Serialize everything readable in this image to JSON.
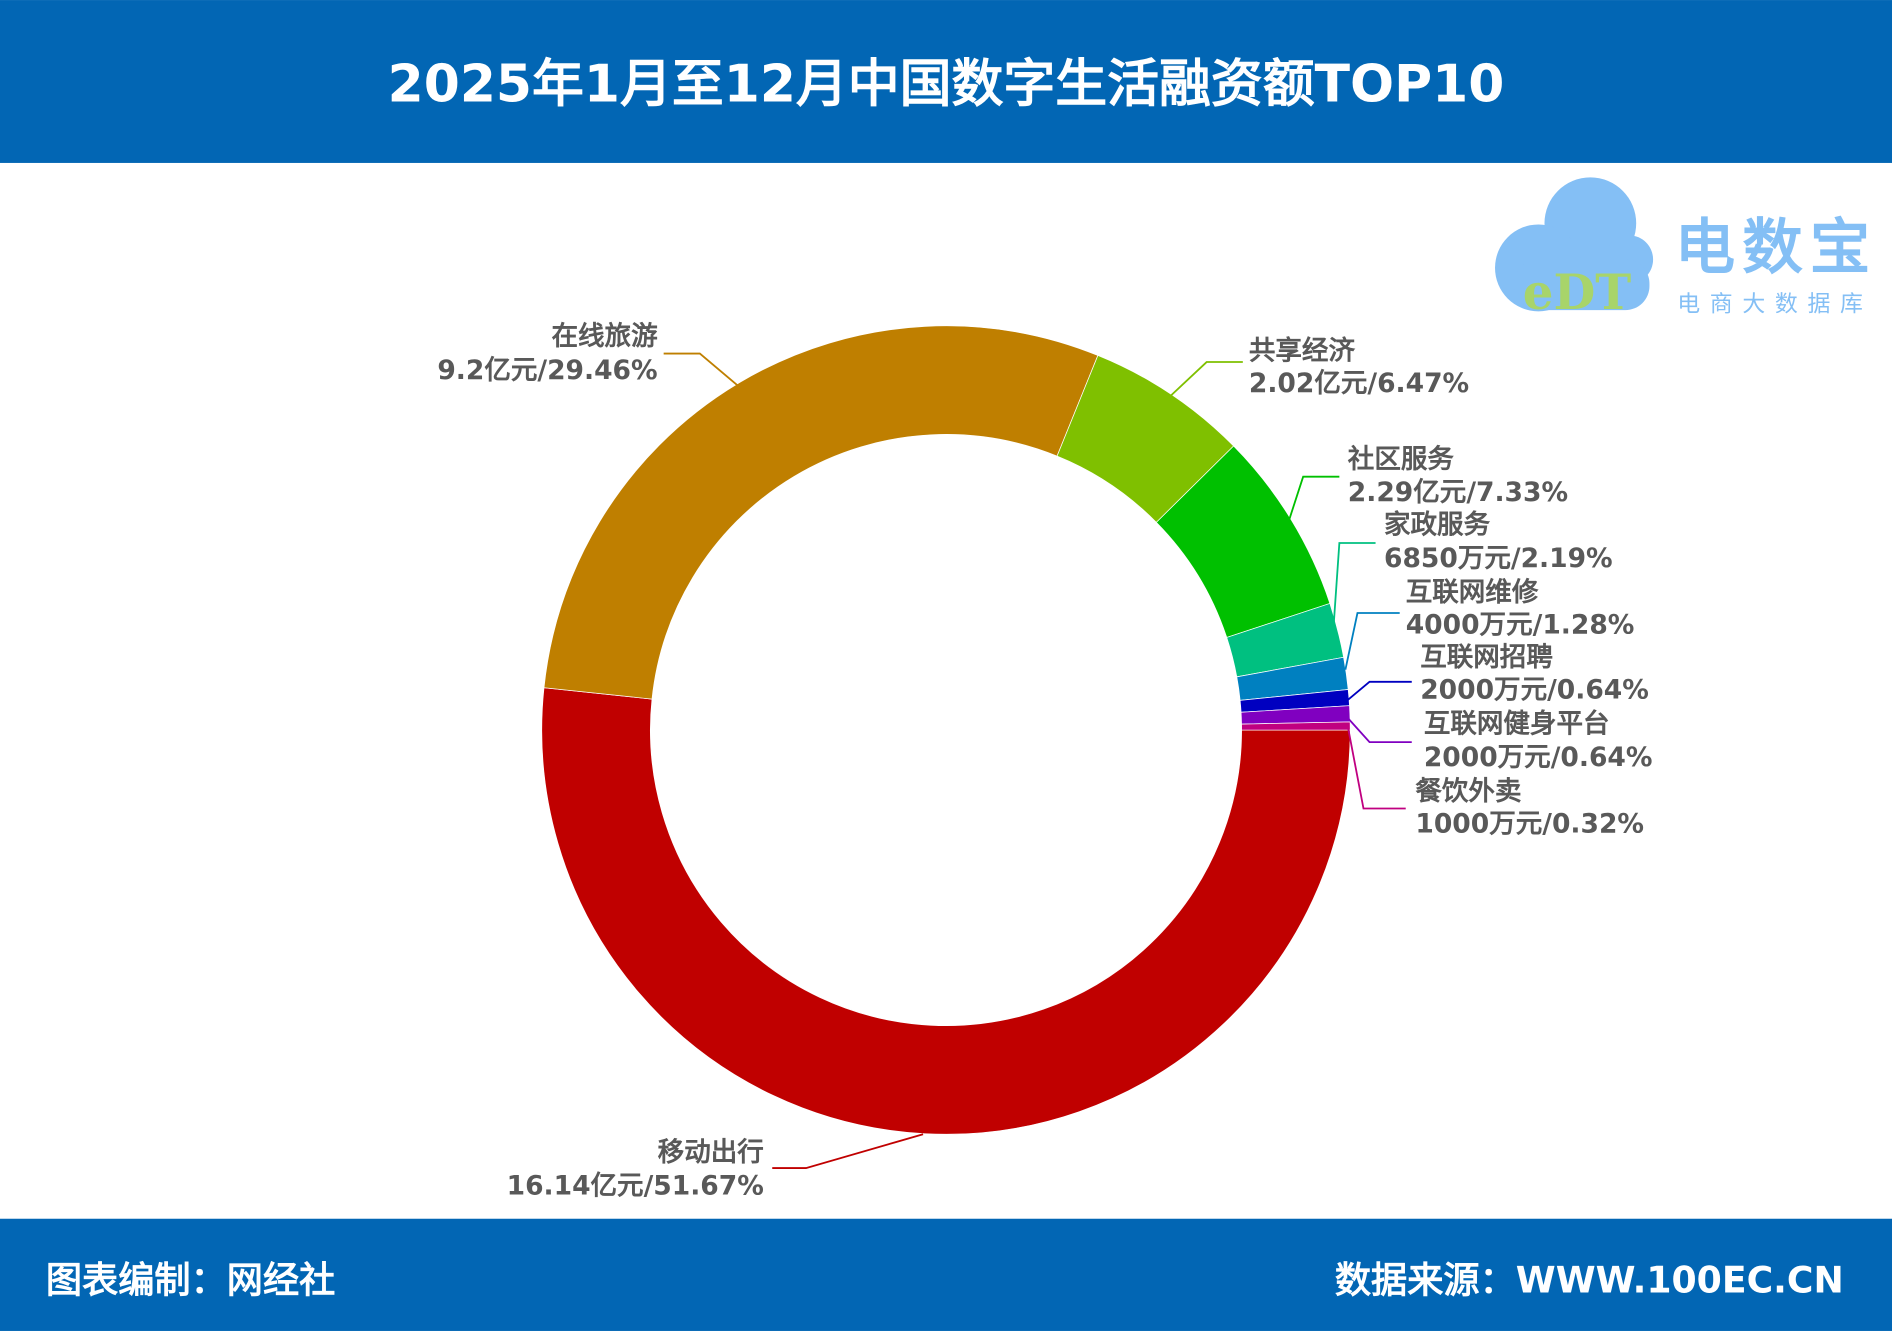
{
  "header": {
    "title": "2025年1月至12月中国数字生活融资额TOP10",
    "bg_color": "#0266B4"
  },
  "footer": {
    "left": "图表编制：网经社",
    "right": "数据来源：WWW.100EC.CN"
  },
  "logo": {
    "mark": "eDT",
    "name": "电数宝",
    "tagline": "电商大数据库"
  },
  "chart_data": {
    "type": "pie",
    "variant": "donut",
    "title": "2025年1月至12月中国数字生活融资额TOP10",
    "direction": "clockwise from 3 o'clock",
    "slices": [
      {
        "name": "移动出行",
        "amount": "16.14亿元",
        "percent": 51.67,
        "color": "#C00000"
      },
      {
        "name": "在线旅游",
        "amount": "9.2亿元",
        "percent": 29.46,
        "color": "#BF7F00"
      },
      {
        "name": "共享经济",
        "amount": "2.02亿元",
        "percent": 6.47,
        "color": "#7FC000"
      },
      {
        "name": "社区服务",
        "amount": "2.29亿元",
        "percent": 7.33,
        "color": "#00C000"
      },
      {
        "name": "家政服务",
        "amount": "6850万元",
        "percent": 2.19,
        "color": "#00C080"
      },
      {
        "name": "互联网维修",
        "amount": "4000万元",
        "percent": 1.28,
        "color": "#0080C0"
      },
      {
        "name": "互联网招聘",
        "amount": "2000万元",
        "percent": 0.64,
        "color": "#0000C0"
      },
      {
        "name": "互联网健身平台",
        "amount": "2000万元",
        "percent": 0.64,
        "color": "#8000C0"
      },
      {
        "name": "餐饮外卖",
        "amount": "1000万元",
        "percent": 0.32,
        "color": "#C00080"
      }
    ]
  }
}
